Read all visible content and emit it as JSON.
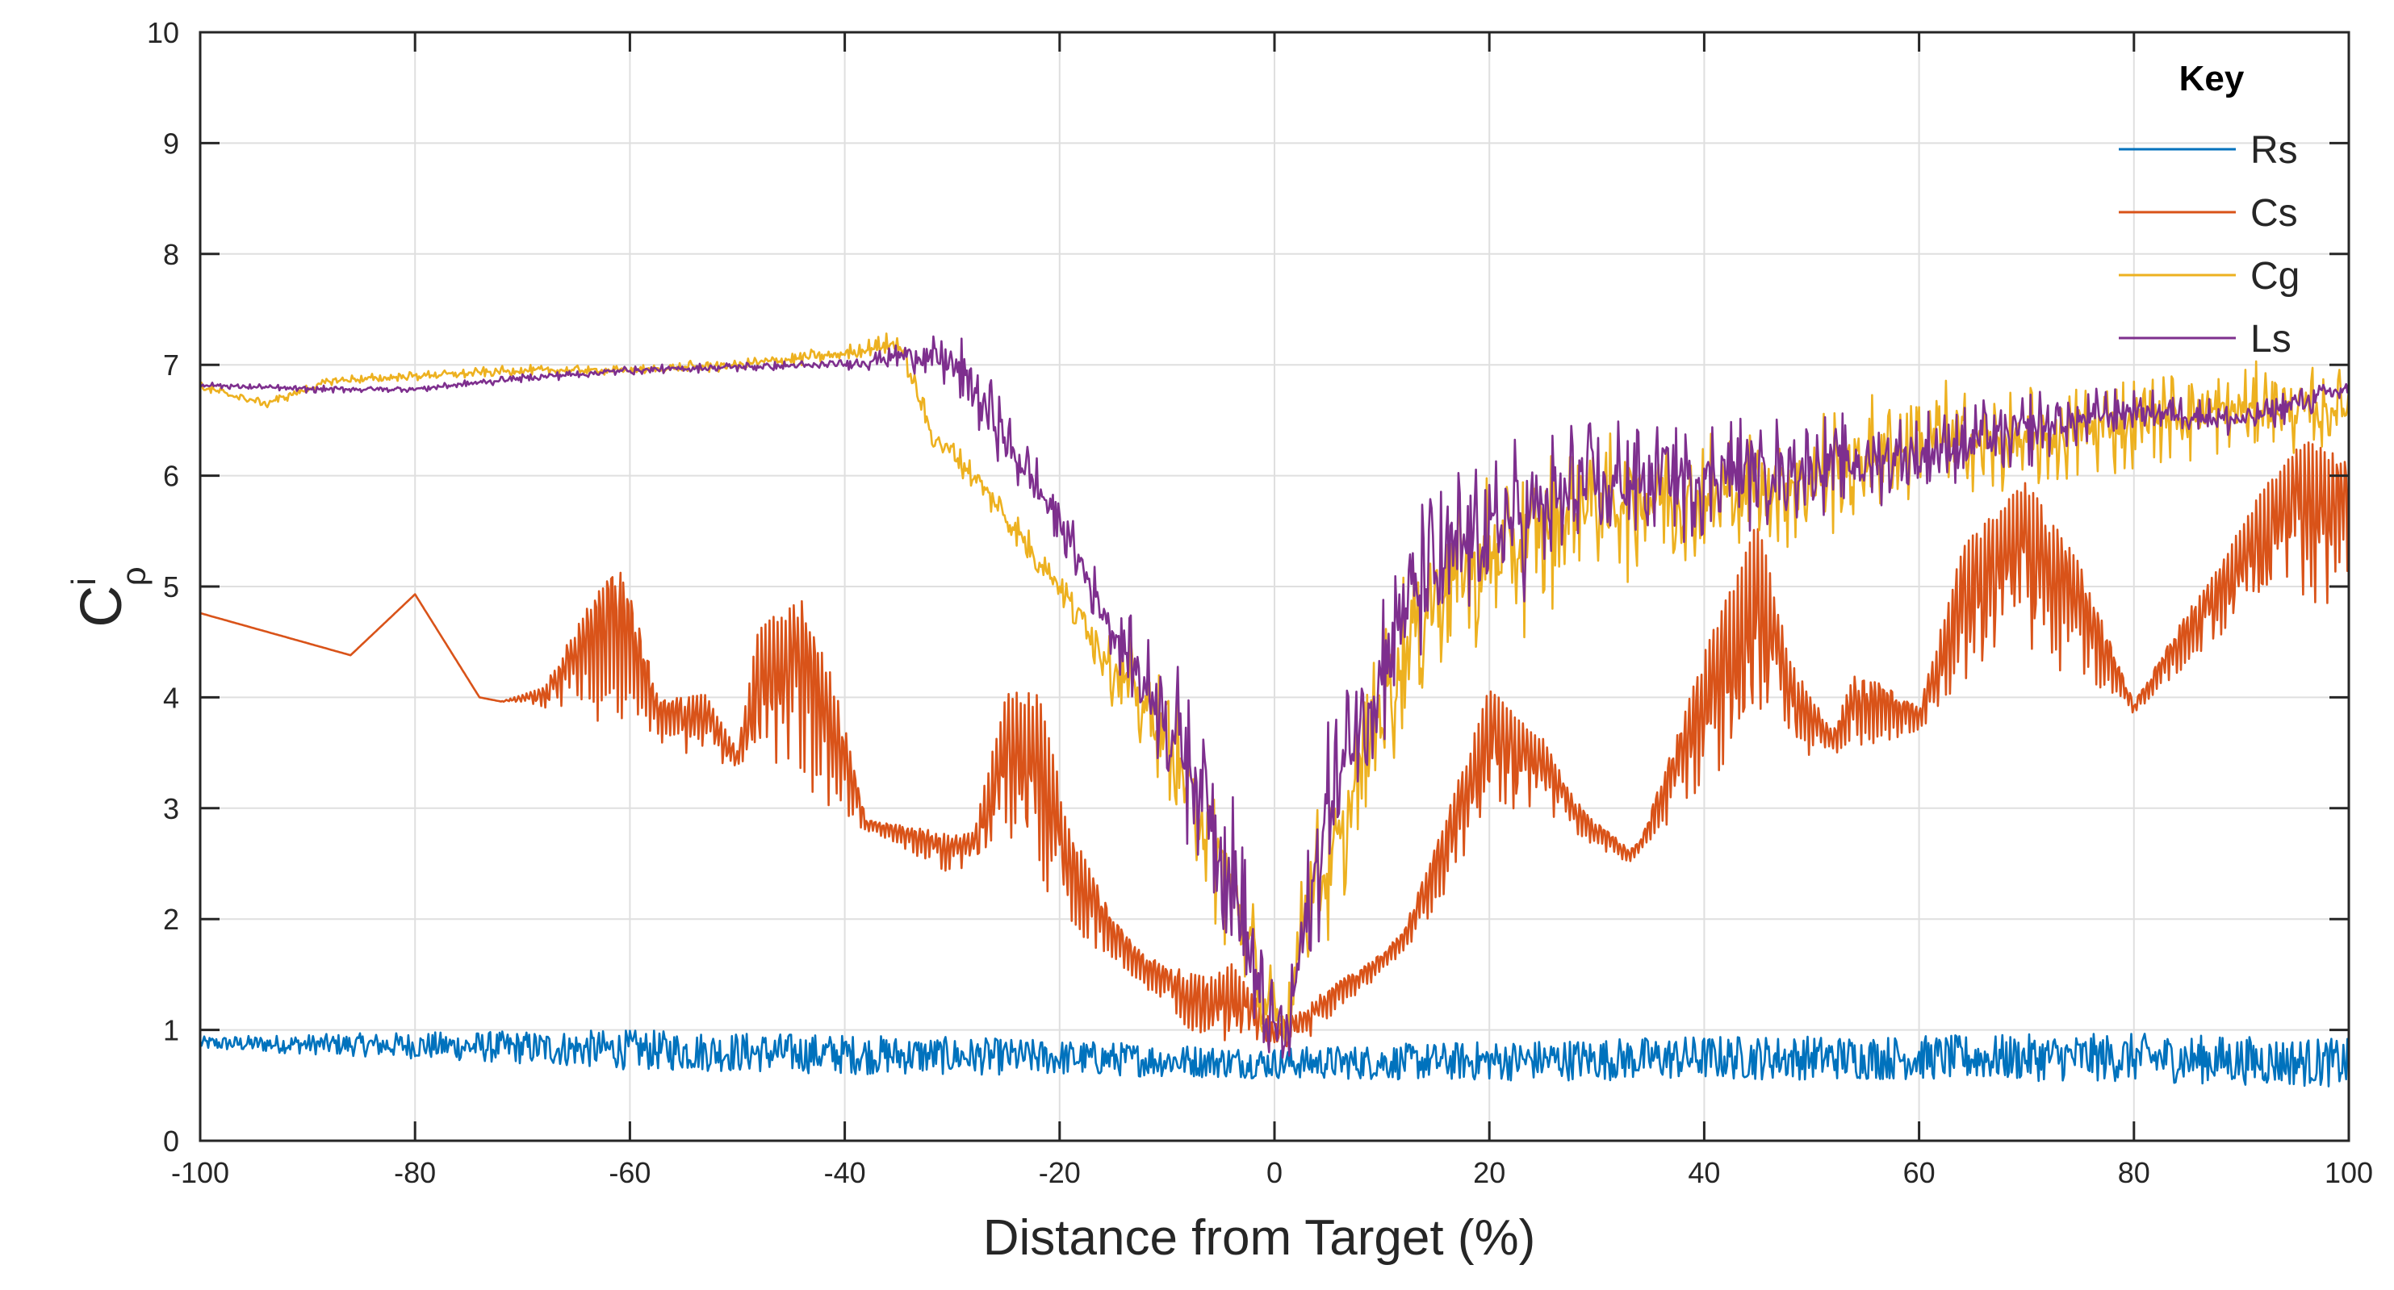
{
  "chart_data": {
    "type": "line",
    "xlabel": "Distance from Target (%)",
    "ylabel": {
      "base": "C",
      "superscript": "i",
      "subscript": "ρ"
    },
    "xlim": [
      -100,
      100
    ],
    "ylim": [
      0,
      10
    ],
    "xticks": [
      -100,
      -80,
      -60,
      -40,
      -20,
      0,
      20,
      40,
      60,
      80,
      100
    ],
    "yticks": [
      0,
      1,
      2,
      3,
      4,
      5,
      6,
      7,
      8,
      9,
      10
    ],
    "grid": true,
    "legend": {
      "title": "Key",
      "placement": "top-right"
    },
    "series": [
      {
        "name": "Rs",
        "color": "#0072BD",
        "base": [
          [
            -100,
            0.88
          ],
          [
            -80,
            0.86
          ],
          [
            -60,
            0.82
          ],
          [
            -40,
            0.78
          ],
          [
            -20,
            0.75
          ],
          [
            0,
            0.7
          ],
          [
            20,
            0.72
          ],
          [
            40,
            0.75
          ],
          [
            60,
            0.75
          ],
          [
            80,
            0.75
          ],
          [
            100,
            0.7
          ]
        ],
        "osc": [
          [
            -100,
            0.06
          ],
          [
            -80,
            0.12
          ],
          [
            -60,
            0.18
          ],
          [
            -40,
            0.18
          ],
          [
            -20,
            0.16
          ],
          [
            0,
            0.14
          ],
          [
            20,
            0.18
          ],
          [
            40,
            0.2
          ],
          [
            60,
            0.2
          ],
          [
            80,
            0.22
          ],
          [
            100,
            0.22
          ]
        ]
      },
      {
        "name": "Cs",
        "color": "#D95319",
        "base": [
          [
            -100,
            4.76
          ],
          [
            -86,
            4.38
          ],
          [
            -80,
            4.93
          ],
          [
            -74,
            4.0
          ],
          [
            -66,
            3.85
          ],
          [
            -60,
            3.72
          ],
          [
            -55,
            3.5
          ],
          [
            -48,
            3.25
          ],
          [
            -40,
            2.9
          ],
          [
            -34,
            2.6
          ],
          [
            -30,
            2.4
          ],
          [
            -25,
            2.35
          ],
          [
            -20,
            2.0
          ],
          [
            -15,
            1.6
          ],
          [
            -10,
            1.2
          ],
          [
            -6,
            0.82
          ],
          [
            -3,
            0.78
          ],
          [
            0,
            0.75
          ],
          [
            3,
            0.9
          ],
          [
            6,
            1.2
          ],
          [
            10,
            1.5
          ],
          [
            15,
            2.0
          ],
          [
            20,
            2.6
          ],
          [
            25,
            2.95
          ],
          [
            30,
            2.65
          ],
          [
            33,
            2.5
          ],
          [
            36,
            2.8
          ],
          [
            40,
            3.2
          ],
          [
            45,
            3.4
          ],
          [
            50,
            3.45
          ],
          [
            55,
            3.55
          ],
          [
            60,
            3.7
          ],
          [
            65,
            4.0
          ],
          [
            70,
            4.15
          ],
          [
            75,
            4.2
          ],
          [
            80,
            3.85
          ],
          [
            85,
            4.3
          ],
          [
            90,
            4.6
          ],
          [
            95,
            4.8
          ],
          [
            100,
            4.85
          ]
        ],
        "osc": [
          [
            -100,
            0
          ],
          [
            -72,
            0
          ],
          [
            -68,
            0.2
          ],
          [
            -64,
            1.0
          ],
          [
            -61,
            1.5
          ],
          [
            -57,
            0.4
          ],
          [
            -53,
            0.6
          ],
          [
            -50,
            0.2
          ],
          [
            -48,
            1.4
          ],
          [
            -44,
            1.8
          ],
          [
            -41,
            1.2
          ],
          [
            -38,
            0.1
          ],
          [
            -32,
            0.3
          ],
          [
            -28,
            0.4
          ],
          [
            -25,
            1.7
          ],
          [
            -22,
            1.9
          ],
          [
            -19,
            0.9
          ],
          [
            -15,
            0.4
          ],
          [
            -12,
            0.3
          ],
          [
            -8,
            0.5
          ],
          [
            -4,
            0.8
          ],
          [
            0,
            0.3
          ],
          [
            4,
            0.3
          ],
          [
            8,
            0.2
          ],
          [
            12,
            0.2
          ],
          [
            16,
            0.8
          ],
          [
            20,
            1.5
          ],
          [
            24,
            0.8
          ],
          [
            28,
            0.3
          ],
          [
            34,
            0.1
          ],
          [
            38,
            0.8
          ],
          [
            42,
            1.6
          ],
          [
            45,
            2.2
          ],
          [
            48,
            0.9
          ],
          [
            52,
            0.2
          ],
          [
            54,
            0.7
          ],
          [
            57,
            0.5
          ],
          [
            60,
            0.2
          ],
          [
            64,
            1.4
          ],
          [
            70,
            1.8
          ],
          [
            75,
            1.0
          ],
          [
            80,
            0.1
          ],
          [
            84,
            0.4
          ],
          [
            88,
            0.7
          ],
          [
            92,
            1.2
          ],
          [
            96,
            1.5
          ],
          [
            100,
            1.3
          ]
        ]
      },
      {
        "name": "Cg",
        "color": "#EDB120",
        "base": [
          [
            -100,
            6.8
          ],
          [
            -94,
            6.65
          ],
          [
            -88,
            6.85
          ],
          [
            -80,
            6.9
          ],
          [
            -70,
            6.95
          ],
          [
            -60,
            6.95
          ],
          [
            -50,
            7.0
          ],
          [
            -40,
            7.1
          ],
          [
            -35,
            7.2
          ],
          [
            -32,
            6.4
          ],
          [
            -28,
            6.0
          ],
          [
            -24,
            5.5
          ],
          [
            -20,
            5.0
          ],
          [
            -15,
            4.3
          ],
          [
            -10,
            3.6
          ],
          [
            -6,
            2.8
          ],
          [
            -3,
            2.0
          ],
          [
            -1,
            1.2
          ],
          [
            1,
            1.0
          ],
          [
            3,
            2.2
          ],
          [
            6,
            2.6
          ],
          [
            10,
            4.0
          ],
          [
            15,
            5.0
          ],
          [
            20,
            5.2
          ],
          [
            25,
            5.5
          ],
          [
            30,
            5.8
          ],
          [
            40,
            5.8
          ],
          [
            50,
            6.0
          ],
          [
            60,
            6.3
          ],
          [
            70,
            6.3
          ],
          [
            80,
            6.5
          ],
          [
            90,
            6.6
          ],
          [
            100,
            6.6
          ]
        ],
        "osc": [
          [
            -100,
            0.05
          ],
          [
            -60,
            0.05
          ],
          [
            -40,
            0.08
          ],
          [
            -32,
            0.15
          ],
          [
            -20,
            0.2
          ],
          [
            -10,
            0.6
          ],
          [
            -4,
            0.8
          ],
          [
            0,
            0.5
          ],
          [
            5,
            0.8
          ],
          [
            10,
            0.9
          ],
          [
            20,
            0.9
          ],
          [
            30,
            0.8
          ],
          [
            40,
            0.7
          ],
          [
            60,
            0.6
          ],
          [
            80,
            0.5
          ],
          [
            100,
            0.4
          ]
        ]
      },
      {
        "name": "Ls",
        "color": "#7E2F8E",
        "base": [
          [
            -100,
            6.82
          ],
          [
            -90,
            6.78
          ],
          [
            -80,
            6.78
          ],
          [
            -70,
            6.88
          ],
          [
            -60,
            6.95
          ],
          [
            -50,
            6.98
          ],
          [
            -40,
            7.0
          ],
          [
            -34,
            7.1
          ],
          [
            -30,
            7.0
          ],
          [
            -28,
            6.8
          ],
          [
            -25,
            6.3
          ],
          [
            -20,
            5.6
          ],
          [
            -15,
            4.6
          ],
          [
            -10,
            3.8
          ],
          [
            -6,
            3.0
          ],
          [
            -3,
            2.0
          ],
          [
            -1,
            1.1
          ],
          [
            1,
            0.9
          ],
          [
            3,
            2.0
          ],
          [
            5,
            3.0
          ],
          [
            8,
            3.8
          ],
          [
            12,
            4.8
          ],
          [
            18,
            5.4
          ],
          [
            25,
            5.7
          ],
          [
            30,
            5.9
          ],
          [
            40,
            6.0
          ],
          [
            50,
            6.1
          ],
          [
            60,
            6.2
          ],
          [
            70,
            6.4
          ],
          [
            80,
            6.6
          ],
          [
            90,
            6.5
          ],
          [
            100,
            6.8
          ]
        ],
        "osc": [
          [
            -100,
            0.03
          ],
          [
            -40,
            0.05
          ],
          [
            -32,
            0.2
          ],
          [
            -28,
            0.45
          ],
          [
            -24,
            0.3
          ],
          [
            -15,
            0.3
          ],
          [
            -8,
            0.8
          ],
          [
            -3,
            1.0
          ],
          [
            0,
            0.4
          ],
          [
            4,
            0.8
          ],
          [
            10,
            0.9
          ],
          [
            20,
            0.8
          ],
          [
            30,
            0.7
          ],
          [
            50,
            0.5
          ],
          [
            70,
            0.4
          ],
          [
            80,
            0.2
          ],
          [
            100,
            0.15
          ]
        ]
      }
    ]
  }
}
